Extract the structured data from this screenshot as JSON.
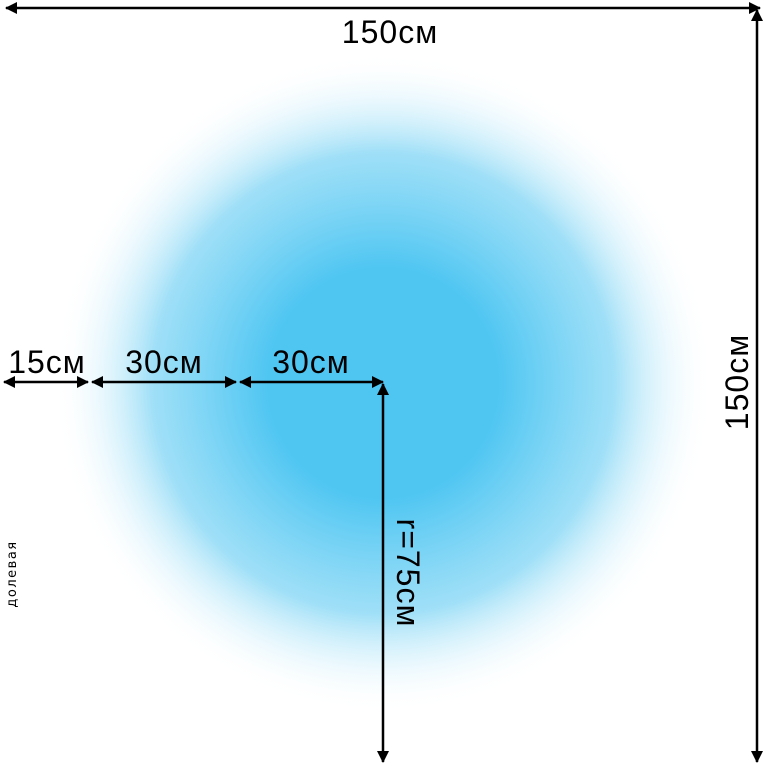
{
  "labels": {
    "width": "150см",
    "height": "150см",
    "segment_edge": "15см",
    "segment_middle": "30см",
    "segment_inner": "30см",
    "radius": "r=75см",
    "side_note": "долевая"
  },
  "colors": {
    "center": "#4fc6f2",
    "edge": "#ffffff",
    "lines": "#000000"
  }
}
